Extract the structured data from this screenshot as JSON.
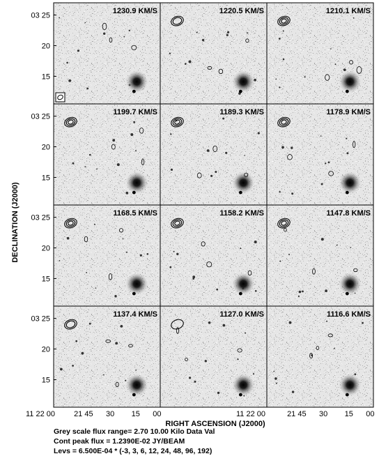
{
  "chart_data": {
    "type": "channel-map",
    "xlabel": "RIGHT ASCENSION (J2000)",
    "ylabel": "DECLINATION (J2000)",
    "x_ticks": [
      "11 22 00",
      "21 45",
      "30",
      "15",
      "00"
    ],
    "x_ticks_col2": [
      "11 22 00"
    ],
    "y_ticks": [
      "03 25",
      "20",
      "15"
    ],
    "y_range_arcmin": [
      10.5,
      27
    ],
    "grid": false,
    "panels": [
      {
        "label": "1230.9 KM/S",
        "source_contours": 0
      },
      {
        "label": "1220.5 KM/S",
        "source_contours": 2
      },
      {
        "label": "1210.1 KM/S",
        "source_contours": 3
      },
      {
        "label": "1199.7 KM/S",
        "source_contours": 3
      },
      {
        "label": "1189.3 KM/S",
        "source_contours": 3
      },
      {
        "label": "1178.9 KM/S",
        "source_contours": 3
      },
      {
        "label": "1168.5 KM/S",
        "source_contours": 3
      },
      {
        "label": "1158.2 KM/S",
        "source_contours": 3
      },
      {
        "label": "1147.8 KM/S",
        "source_contours": 3
      },
      {
        "label": "1137.4 KM/S",
        "source_contours": 2
      },
      {
        "label": "1127.0 KM/S",
        "source_contours": 1
      },
      {
        "label": "1116.6 KM/S",
        "source_contours": 0
      }
    ],
    "grey_scale_range": [
      2.7,
      10.0
    ],
    "cont_peak_flux": 0.01239,
    "contour_base": 0.00065,
    "contour_multipliers": [
      -3,
      3,
      6,
      12,
      24,
      48,
      96,
      192
    ],
    "colors": {
      "frame": "#000000",
      "background": "#ffffff",
      "galaxy": "#000000"
    }
  },
  "captions": {
    "grey": "Grey scale flux range= 2.70 10.00 Kilo Data Val",
    "peak": "Cont peak flux =  1.2390E-02 JY/BEAM",
    "levs": "Levs = 6.500E-04 * (-3, 3, 6, 12, 24, 48, 96, 192)"
  }
}
